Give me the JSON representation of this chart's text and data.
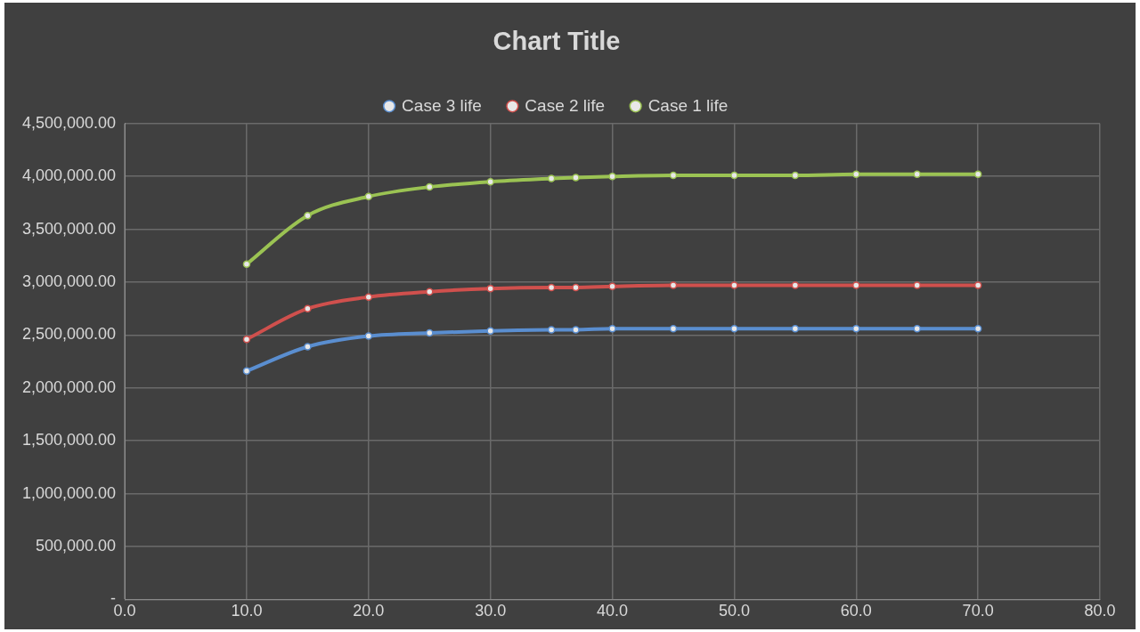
{
  "chart_data": {
    "type": "line",
    "title": "Chart Title",
    "x": [
      10,
      15,
      20,
      25,
      30,
      35,
      37,
      40,
      45,
      50,
      55,
      60,
      65,
      70
    ],
    "series": [
      {
        "name": "Case 3 life",
        "color": "#5a8ed0",
        "values": [
          2160000,
          2390000,
          2490000,
          2520000,
          2540000,
          2550000,
          2550000,
          2560000,
          2560000,
          2560000,
          2560000,
          2560000,
          2560000,
          2560000
        ]
      },
      {
        "name": "Case 2 life",
        "color": "#d0504d",
        "values": [
          2460000,
          2750000,
          2860000,
          2910000,
          2940000,
          2950000,
          2950000,
          2960000,
          2970000,
          2970000,
          2970000,
          2970000,
          2970000,
          2970000
        ]
      },
      {
        "name": "Case 1 life",
        "color": "#9bc353",
        "values": [
          3170000,
          3630000,
          3810000,
          3900000,
          3950000,
          3980000,
          3990000,
          4000000,
          4010000,
          4010000,
          4010000,
          4020000,
          4020000,
          4020000
        ]
      }
    ],
    "xlim": [
      0,
      80
    ],
    "xticks": [
      {
        "value": 0,
        "label": "0.0"
      },
      {
        "value": 10,
        "label": "10.0"
      },
      {
        "value": 20,
        "label": "20.0"
      },
      {
        "value": 30,
        "label": "30.0"
      },
      {
        "value": 40,
        "label": "40.0"
      },
      {
        "value": 50,
        "label": "50.0"
      },
      {
        "value": 60,
        "label": "60.0"
      },
      {
        "value": 70,
        "label": "70.0"
      },
      {
        "value": 80,
        "label": "80.0"
      }
    ],
    "ylim": [
      0,
      4500000
    ],
    "yticks": [
      {
        "value": 0,
        "label": "-"
      },
      {
        "value": 500000,
        "label": "500,000.00"
      },
      {
        "value": 1000000,
        "label": "1,000,000.00"
      },
      {
        "value": 1500000,
        "label": "1,500,000.00"
      },
      {
        "value": 2000000,
        "label": "2,000,000.00"
      },
      {
        "value": 2500000,
        "label": "2,500,000.00"
      },
      {
        "value": 3000000,
        "label": "3,000,000.00"
      },
      {
        "value": 3500000,
        "label": "3,500,000.00"
      },
      {
        "value": 4000000,
        "label": "4,000,000.00"
      },
      {
        "value": 4500000,
        "label": "4,500,000.00"
      }
    ],
    "grid": true,
    "legend": "top",
    "marker": "circle",
    "line_style": "solid"
  }
}
